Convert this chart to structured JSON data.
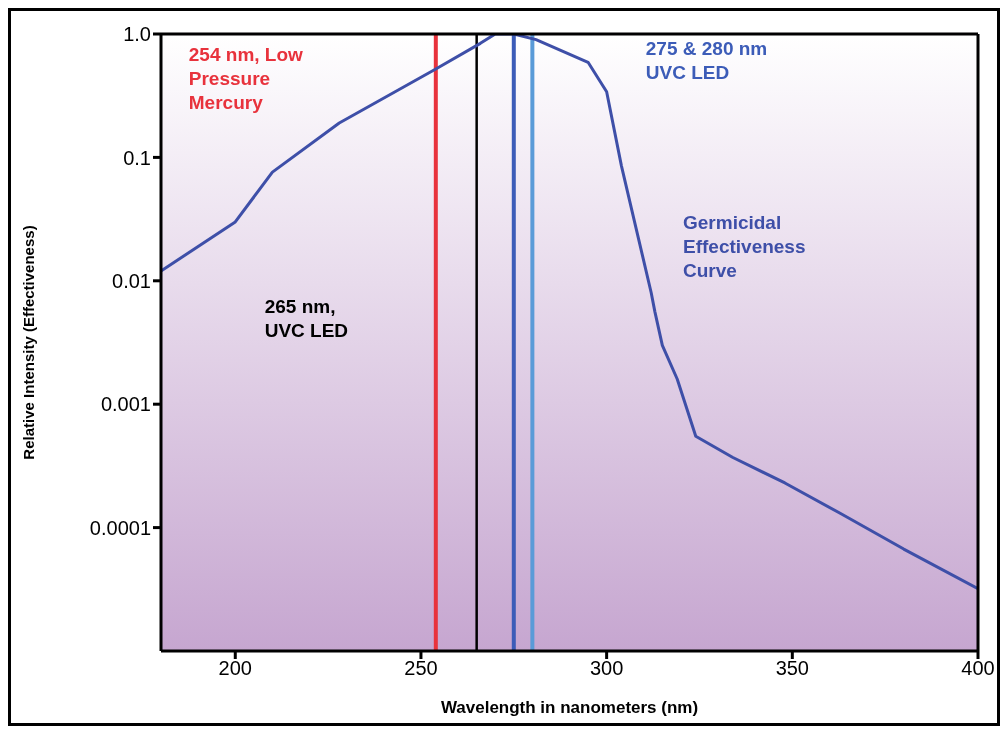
{
  "chart_data": {
    "type": "line",
    "xlabel": "Wavelength in nanometers (nm)",
    "ylabel": "Relative Intensity (Effectiveness)",
    "log": "y",
    "xlim": [
      180,
      400
    ],
    "xticks": [
      200,
      250,
      300,
      350,
      400
    ],
    "ylim": [
      1e-05,
      1
    ],
    "yticks": [
      {
        "value": 1,
        "label": "1.0"
      },
      0.1,
      0.01,
      0.001,
      0.0001
    ],
    "marker": "none",
    "line_style": "solid",
    "legend": false,
    "series": [
      {
        "name": "Germicidal Effectiveness Curve",
        "color": "#3e4fa8",
        "x": [
          180,
          200,
          210,
          228,
          254,
          266,
          270,
          275,
          281,
          295,
          300,
          304,
          312,
          313,
          315,
          319,
          324,
          334,
          348,
          363,
          380,
          400
        ],
        "values": [
          0.012,
          0.03,
          0.076,
          0.19,
          0.52,
          0.84,
          1,
          1,
          0.9,
          0.59,
          0.34,
          0.085,
          0.008,
          0.0056,
          0.003,
          0.0016,
          0.00055,
          0.00037,
          0.00023,
          0.00013,
          6.7e-05,
          3.2e-05
        ]
      }
    ],
    "ref_lines": [
      {
        "axis": "x",
        "value": 254,
        "label": "254 nm, Low Pressure Mercury",
        "color": "#e8323c",
        "line_style": "solid"
      },
      {
        "axis": "x",
        "value": 265,
        "label": "265 nm, UVC LED",
        "color": "#000000",
        "line_style": "solid"
      },
      {
        "axis": "x",
        "value": 275,
        "label": "275 & 280 nm UVC LED",
        "color": "#3c5cb8",
        "line_style": "solid"
      },
      {
        "axis": "x",
        "value": 280,
        "color": "#5a9bd8",
        "line_style": "solid"
      }
    ]
  }
}
